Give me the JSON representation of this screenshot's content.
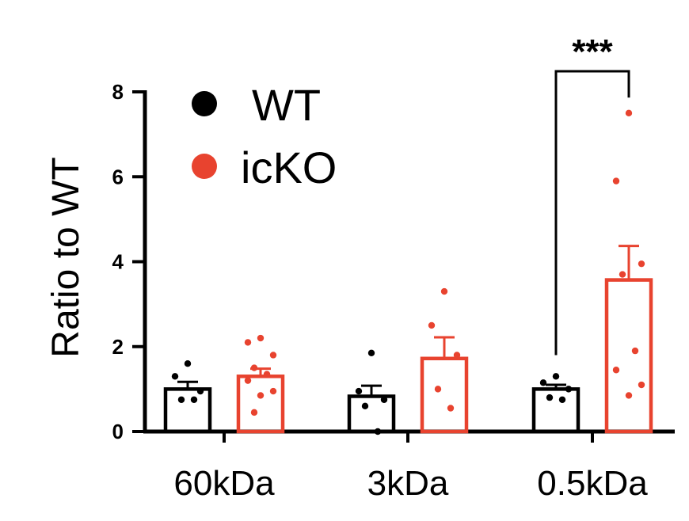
{
  "chart_data": {
    "type": "bar",
    "title": "",
    "ylabel": "Ratio to WT",
    "xlabel": "",
    "ylim": [
      0,
      8
    ],
    "yticks": [
      "0",
      "2",
      "4",
      "6",
      "8"
    ],
    "categories": [
      "60kDa",
      "3kDa",
      "0.5kDa"
    ],
    "legend": {
      "placement": "top-left"
    },
    "series": [
      {
        "name": "WT",
        "color": "#000000",
        "values": [
          1.0,
          0.83,
          1.0
        ],
        "errors": [
          0.17,
          0.25,
          0.1
        ],
        "points": [
          [
            1.6,
            1.3,
            0.95,
            0.75,
            0.75
          ],
          [
            1.85,
            0.95,
            0.75,
            0.6,
            0.0
          ],
          [
            1.3,
            1.15,
            1.0,
            0.8,
            0.75
          ]
        ]
      },
      {
        "name": "icKO",
        "color": "#e8432f",
        "values": [
          1.3,
          1.72,
          3.57
        ],
        "errors": [
          0.18,
          0.5,
          0.8
        ],
        "points": [
          [
            2.2,
            2.1,
            1.8,
            1.5,
            1.35,
            1.2,
            0.95,
            0.85,
            0.45
          ],
          [
            3.3,
            2.5,
            1.8,
            1.0,
            0.55
          ],
          [
            7.5,
            5.9,
            3.95,
            3.7,
            1.9,
            1.45,
            1.1,
            0.85
          ]
        ]
      }
    ],
    "annotations": [
      {
        "text": "***",
        "category": "0.5kDa"
      }
    ]
  }
}
